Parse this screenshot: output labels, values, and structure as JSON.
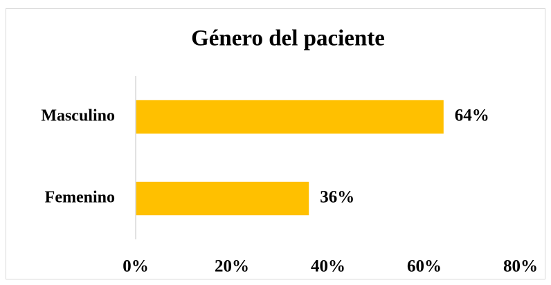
{
  "chart_data": {
    "type": "bar",
    "orientation": "horizontal",
    "title": "Género del paciente",
    "categories": [
      "Masculino",
      "Femenino"
    ],
    "values": [
      64,
      36
    ],
    "value_labels": [
      "64%",
      "36%"
    ],
    "color": "#ffc000",
    "xlim": [
      0,
      80
    ],
    "xticks": [
      {
        "value": 0,
        "label": "0%"
      },
      {
        "value": 20,
        "label": "20%"
      },
      {
        "value": 40,
        "label": "40%"
      },
      {
        "value": 60,
        "label": "60%"
      },
      {
        "value": 80,
        "label": "80%"
      }
    ]
  }
}
